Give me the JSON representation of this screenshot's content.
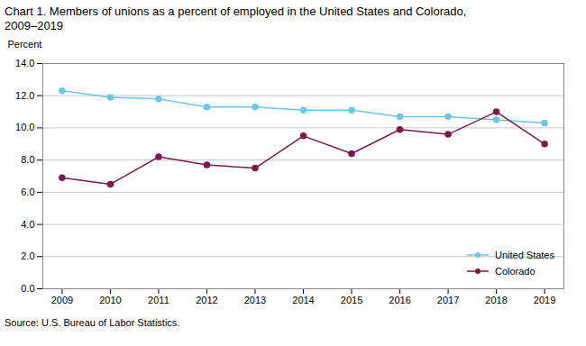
{
  "chart_data": {
    "type": "line",
    "title": "Chart 1. Members of unions as a percent of employed in the United States and Colorado,\n2009–2019",
    "ylabel": "Percent",
    "source": "Source: U.S. Bureau of Labor Statistics.",
    "x": [
      2009,
      2010,
      2011,
      2012,
      2013,
      2014,
      2015,
      2016,
      2017,
      2018,
      2019
    ],
    "series": [
      {
        "name": "United States",
        "color": "#6ec6e8",
        "marker": "circle",
        "line_style": "solid",
        "values": [
          12.3,
          11.9,
          11.8,
          11.3,
          11.3,
          11.1,
          11.1,
          10.7,
          10.7,
          10.5,
          10.3
        ]
      },
      {
        "name": "Colorado",
        "color": "#7b1a4b",
        "marker": "circle",
        "line_style": "solid",
        "values": [
          6.9,
          6.5,
          8.2,
          7.7,
          7.5,
          9.5,
          8.4,
          9.9,
          9.6,
          11.0,
          9.0
        ]
      }
    ],
    "xlim": [
      2008.6,
      2019.4
    ],
    "xticks": [
      2009,
      2010,
      2011,
      2012,
      2013,
      2014,
      2015,
      2016,
      2017,
      2018,
      2019
    ],
    "ylim": [
      0.0,
      14.0
    ],
    "yticks": [
      {
        "value": 0,
        "label": "0.0"
      },
      {
        "value": 2,
        "label": "2.0"
      },
      {
        "value": 4,
        "label": "4.0"
      },
      {
        "value": 6,
        "label": "6.0"
      },
      {
        "value": 8,
        "label": "8.0"
      },
      {
        "value": 10,
        "label": "10.0"
      },
      {
        "value": 12,
        "label": "12.0"
      },
      {
        "value": 14,
        "label": "14.0"
      }
    ],
    "grid": true,
    "legend": "lower right"
  }
}
